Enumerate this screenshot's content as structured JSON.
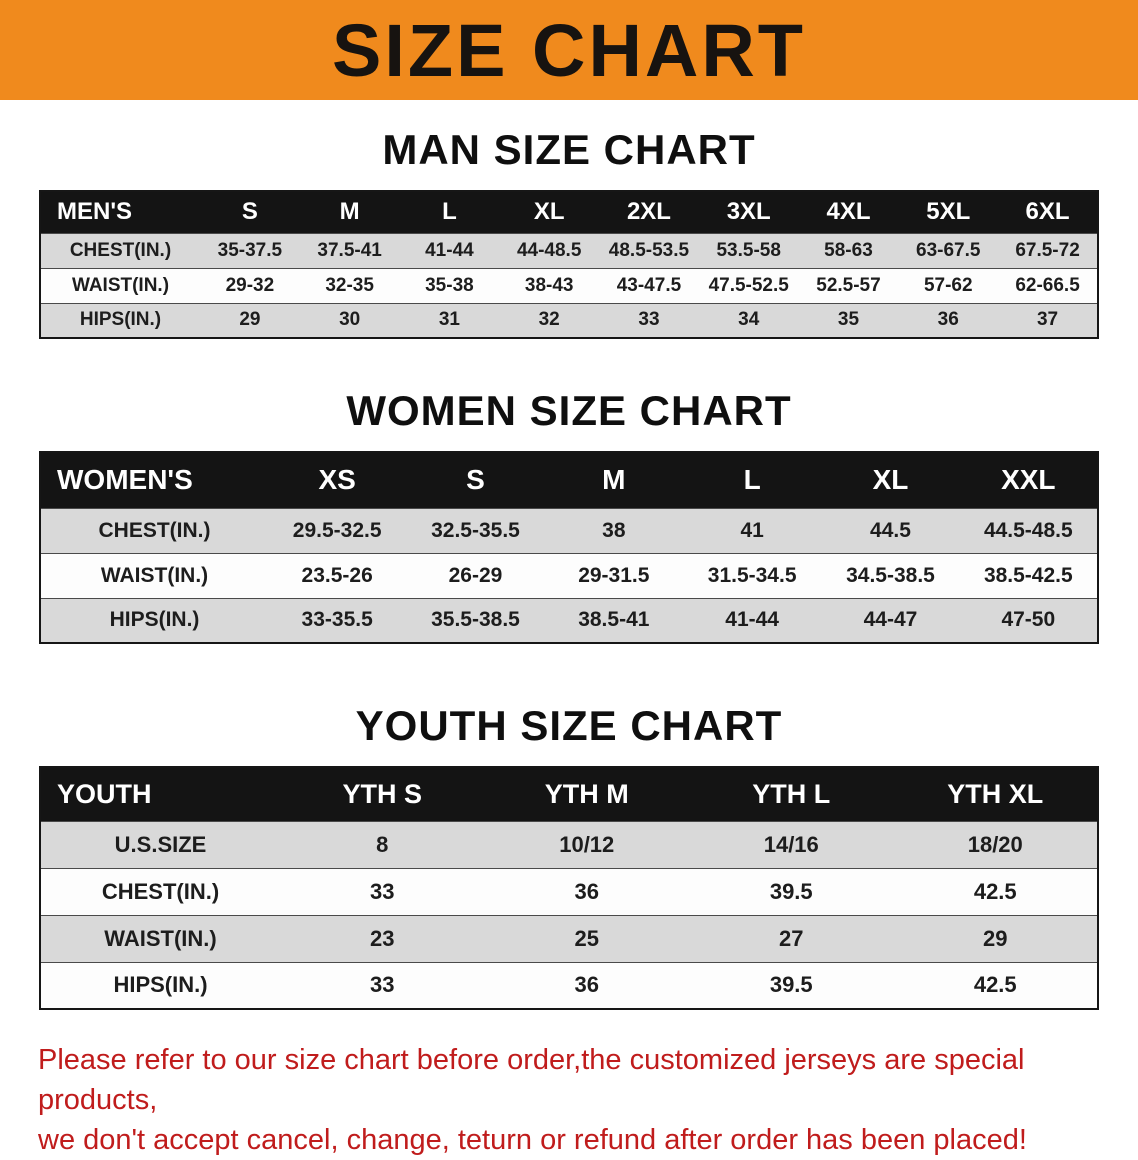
{
  "banner": {
    "title": "SIZE CHART",
    "bg_color": "#f08a1d",
    "text_color": "#171310"
  },
  "sections": [
    {
      "id": "men",
      "heading": "MAN SIZE CHART",
      "table": {
        "header": [
          "MEN'S",
          "S",
          "M",
          "L",
          "XL",
          "2XL",
          "3XL",
          "4XL",
          "5XL",
          "6XL"
        ],
        "rows": [
          {
            "label": "CHEST(IN.)",
            "values": [
              "35-37.5",
              "37.5-41",
              "41-44",
              "44-48.5",
              "48.5-53.5",
              "53.5-58",
              "58-63",
              "63-67.5",
              "67.5-72"
            ]
          },
          {
            "label": "WAIST(IN.)",
            "values": [
              "29-32",
              "32-35",
              "35-38",
              "38-43",
              "43-47.5",
              "47.5-52.5",
              "52.5-57",
              "57-62",
              "62-66.5"
            ]
          },
          {
            "label": "HIPS(IN.)",
            "values": [
              "29",
              "30",
              "31",
              "32",
              "33",
              "34",
              "35",
              "36",
              "37"
            ]
          }
        ]
      }
    },
    {
      "id": "women",
      "heading": "WOMEN SIZE CHART",
      "table": {
        "header": [
          "WOMEN'S",
          "XS",
          "S",
          "M",
          "L",
          "XL",
          "XXL"
        ],
        "rows": [
          {
            "label": "CHEST(IN.)",
            "values": [
              "29.5-32.5",
              "32.5-35.5",
              "38",
              "41",
              "44.5",
              "44.5-48.5"
            ]
          },
          {
            "label": "WAIST(IN.)",
            "values": [
              "23.5-26",
              "26-29",
              "29-31.5",
              "31.5-34.5",
              "34.5-38.5",
              "38.5-42.5"
            ]
          },
          {
            "label": "HIPS(IN.)",
            "values": [
              "33-35.5",
              "35.5-38.5",
              "38.5-41",
              "41-44",
              "44-47",
              "47-50"
            ]
          }
        ]
      }
    },
    {
      "id": "youth",
      "heading": "YOUTH SIZE CHART",
      "table": {
        "header": [
          "YOUTH",
          "YTH S",
          "YTH M",
          "YTH L",
          "YTH XL"
        ],
        "rows": [
          {
            "label": "U.S.SIZE",
            "values": [
              "8",
              "10/12",
              "14/16",
              "18/20"
            ]
          },
          {
            "label": "CHEST(IN.)",
            "values": [
              "33",
              "36",
              "39.5",
              "42.5"
            ]
          },
          {
            "label": "WAIST(IN.)",
            "values": [
              "23",
              "25",
              "27",
              "29"
            ]
          },
          {
            "label": "HIPS(IN.)",
            "values": [
              "33",
              "36",
              "39.5",
              "42.5"
            ]
          }
        ]
      }
    }
  ],
  "footer": {
    "line1": "Please refer to our size chart before order,the customized jerseys are special products,",
    "line2": "we don't accept cancel, change, teturn or refund after order has been placed!",
    "text_color": "#c01c1c"
  }
}
